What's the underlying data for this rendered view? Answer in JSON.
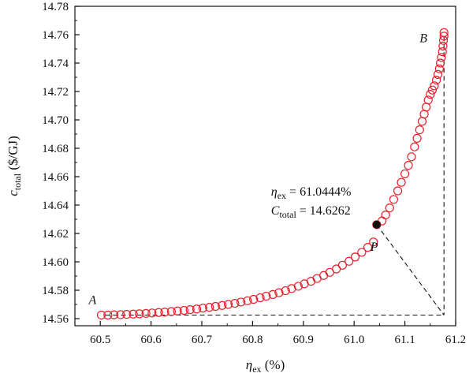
{
  "chart_data": {
    "type": "scatter",
    "x_axis": {
      "label_symbol": "η",
      "label_sub": "ex",
      "label_unit": " (%)",
      "range": [
        60.45,
        61.2
      ],
      "ticks": [
        60.5,
        60.6,
        60.7,
        60.8,
        60.9,
        61.0,
        61.1,
        61.2
      ],
      "tick_labels": [
        "60.5",
        "60.6",
        "60.7",
        "60.8",
        "60.9",
        "61.0",
        "61.1",
        "61.2"
      ]
    },
    "y_axis": {
      "label_symbol": "c",
      "label_sub": "total",
      "label_unit": " ($/GJ)",
      "range": [
        14.555,
        14.78
      ],
      "ticks": [
        14.56,
        14.58,
        14.6,
        14.62,
        14.64,
        14.66,
        14.68,
        14.7,
        14.72,
        14.74,
        14.76,
        14.78
      ],
      "tick_labels": [
        "14.56",
        "14.58",
        "14.60",
        "14.62",
        "14.64",
        "14.66",
        "14.68",
        "14.70",
        "14.72",
        "14.74",
        "14.76",
        "14.78"
      ]
    },
    "grid": false,
    "marker": {
      "shape": "open-circle",
      "color": "#e8202a"
    },
    "series": [
      {
        "points": [
          [
            60.502,
            14.5625
          ],
          [
            60.515,
            14.5625
          ],
          [
            60.527,
            14.5627
          ],
          [
            60.54,
            14.5628
          ],
          [
            60.552,
            14.563
          ],
          [
            60.565,
            14.5632
          ],
          [
            60.577,
            14.5634
          ],
          [
            60.59,
            14.5637
          ],
          [
            60.602,
            14.564
          ],
          [
            60.615,
            14.5643
          ],
          [
            60.627,
            14.5646
          ],
          [
            60.64,
            14.565
          ],
          [
            60.652,
            14.5654
          ],
          [
            60.665,
            14.5658
          ],
          [
            60.677,
            14.5663
          ],
          [
            60.69,
            14.5668
          ],
          [
            60.702,
            14.5674
          ],
          [
            60.715,
            14.568
          ],
          [
            60.727,
            14.5686
          ],
          [
            60.74,
            14.5693
          ],
          [
            60.752,
            14.57
          ],
          [
            60.765,
            14.5708
          ],
          [
            60.777,
            14.5717
          ],
          [
            60.79,
            14.5726
          ],
          [
            60.802,
            14.5736
          ],
          [
            60.815,
            14.5747
          ],
          [
            60.827,
            14.5758
          ],
          [
            60.84,
            14.577
          ],
          [
            60.852,
            14.5783
          ],
          [
            60.865,
            14.5797
          ],
          [
            60.877,
            14.5812
          ],
          [
            60.89,
            14.5828
          ],
          [
            60.902,
            14.5845
          ],
          [
            60.915,
            14.5863
          ],
          [
            60.927,
            14.5883
          ],
          [
            60.94,
            14.5904
          ],
          [
            60.952,
            14.5926
          ],
          [
            60.965,
            14.595
          ],
          [
            60.977,
            14.5976
          ],
          [
            60.99,
            14.6004
          ],
          [
            61.002,
            14.6034
          ],
          [
            61.015,
            14.6067
          ],
          [
            61.027,
            14.6102
          ],
          [
            61.038,
            14.614
          ],
          [
            61.0444,
            14.6262
          ],
          [
            61.055,
            14.6288
          ],
          [
            61.062,
            14.633
          ],
          [
            61.07,
            14.638
          ],
          [
            61.078,
            14.644
          ],
          [
            61.086,
            14.65
          ],
          [
            61.093,
            14.656
          ],
          [
            61.1,
            14.662
          ],
          [
            61.107,
            14.668
          ],
          [
            61.113,
            14.674
          ],
          [
            61.119,
            14.681
          ],
          [
            61.124,
            14.687
          ],
          [
            61.129,
            14.693
          ],
          [
            61.134,
            14.699
          ],
          [
            61.138,
            14.704
          ],
          [
            61.142,
            14.709
          ],
          [
            61.146,
            14.714
          ],
          [
            61.15,
            14.718
          ],
          [
            61.154,
            14.721
          ],
          [
            61.158,
            14.724
          ],
          [
            61.162,
            14.728
          ],
          [
            61.165,
            14.732
          ],
          [
            61.168,
            14.736
          ],
          [
            61.17,
            14.74
          ],
          [
            61.172,
            14.744
          ],
          [
            61.174,
            14.748
          ],
          [
            61.175,
            14.752
          ],
          [
            61.176,
            14.756
          ],
          [
            61.177,
            14.759
          ],
          [
            61.177,
            14.7615
          ]
        ]
      }
    ],
    "highlight_point": {
      "label": "P",
      "x": 61.0444,
      "y": 14.6262,
      "annotation_line1_symbol": "η",
      "annotation_line1_sub": "ex",
      "annotation_line1_value": " = 61.0444%",
      "annotation_line2_symbol": "C",
      "annotation_line2_sub": "total",
      "annotation_line2_value": " = 14.6262"
    },
    "endpoint_labels": [
      {
        "label": "A",
        "x": 60.502,
        "y": 14.5625
      },
      {
        "label": "B",
        "x": 61.177,
        "y": 14.7615
      }
    ],
    "corner_point": {
      "x": 61.177,
      "y": 14.5625
    }
  }
}
